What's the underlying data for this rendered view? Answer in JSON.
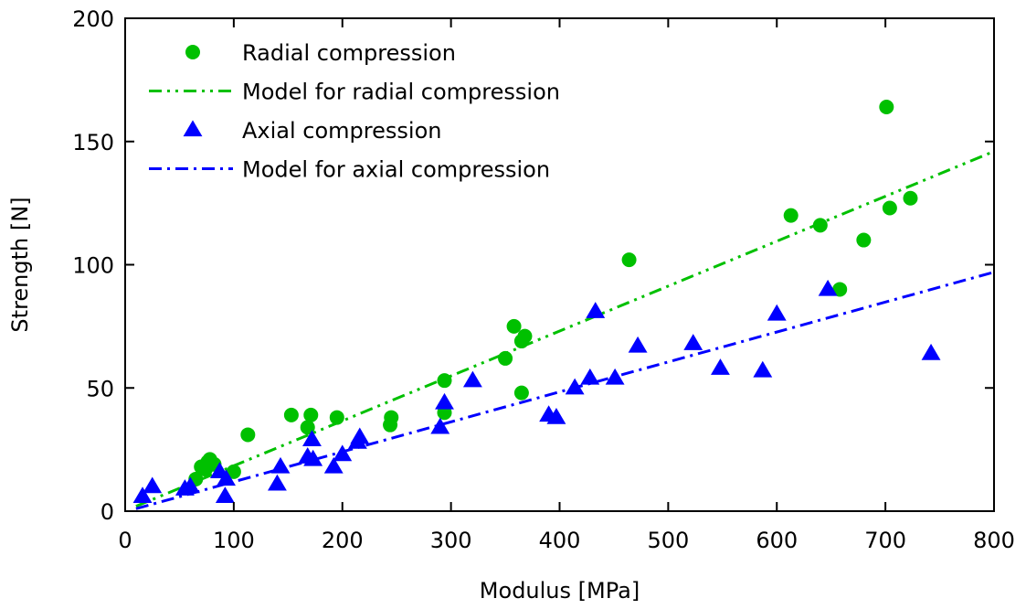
{
  "chart_data": {
    "type": "scatter",
    "xlabel": "Modulus [MPa]",
    "ylabel": "Strength [N]",
    "xlim": [
      0,
      800
    ],
    "ylim": [
      0,
      200
    ],
    "xticks": [
      "0",
      "100",
      "200",
      "300",
      "400",
      "500",
      "600",
      "700",
      "800"
    ],
    "yticks": [
      "0",
      "50",
      "100",
      "150",
      "200"
    ],
    "grid": false,
    "legend_position": "top-left",
    "series": [
      {
        "name": "Radial compression",
        "kind": "points",
        "marker": "circle",
        "color": "#00c000",
        "points": [
          [
            65,
            13
          ],
          [
            70,
            18
          ],
          [
            74,
            17
          ],
          [
            76,
            20
          ],
          [
            78,
            21
          ],
          [
            82,
            19
          ],
          [
            100,
            16
          ],
          [
            113,
            31
          ],
          [
            153,
            39
          ],
          [
            168,
            34
          ],
          [
            171,
            39
          ],
          [
            195,
            38
          ],
          [
            244,
            35
          ],
          [
            245,
            38
          ],
          [
            294,
            40
          ],
          [
            294,
            53
          ],
          [
            350,
            62
          ],
          [
            358,
            75
          ],
          [
            365,
            69
          ],
          [
            365,
            48
          ],
          [
            368,
            71
          ],
          [
            464,
            102
          ],
          [
            613,
            120
          ],
          [
            640,
            116
          ],
          [
            658,
            90
          ],
          [
            680,
            110
          ],
          [
            701,
            164
          ],
          [
            704,
            123
          ],
          [
            723,
            127
          ]
        ]
      },
      {
        "name": "Model for radial compression",
        "kind": "line",
        "style": "dash-dot-dot",
        "color": "#00c000",
        "points": [
          [
            10,
            2
          ],
          [
            800,
            146
          ]
        ]
      },
      {
        "name": "Axial compression",
        "kind": "points",
        "marker": "triangle",
        "color": "#0000ff",
        "points": [
          [
            16,
            6
          ],
          [
            25,
            10
          ],
          [
            55,
            9
          ],
          [
            60,
            10
          ],
          [
            87,
            16
          ],
          [
            92,
            6
          ],
          [
            93,
            13
          ],
          [
            140,
            11
          ],
          [
            143,
            18
          ],
          [
            168,
            22
          ],
          [
            172,
            29
          ],
          [
            173,
            21
          ],
          [
            192,
            18
          ],
          [
            200,
            23
          ],
          [
            214,
            28
          ],
          [
            216,
            30
          ],
          [
            290,
            34
          ],
          [
            294,
            44
          ],
          [
            320,
            53
          ],
          [
            390,
            39
          ],
          [
            397,
            38
          ],
          [
            414,
            50
          ],
          [
            428,
            54
          ],
          [
            451,
            54
          ],
          [
            433,
            81
          ],
          [
            472,
            67
          ],
          [
            523,
            68
          ],
          [
            548,
            58
          ],
          [
            587,
            57
          ],
          [
            600,
            80
          ],
          [
            647,
            90
          ],
          [
            742,
            64
          ]
        ]
      },
      {
        "name": "Model for axial compression",
        "kind": "line",
        "style": "dash-dot",
        "color": "#0000ff",
        "points": [
          [
            10,
            1
          ],
          [
            800,
            97
          ]
        ]
      }
    ]
  }
}
